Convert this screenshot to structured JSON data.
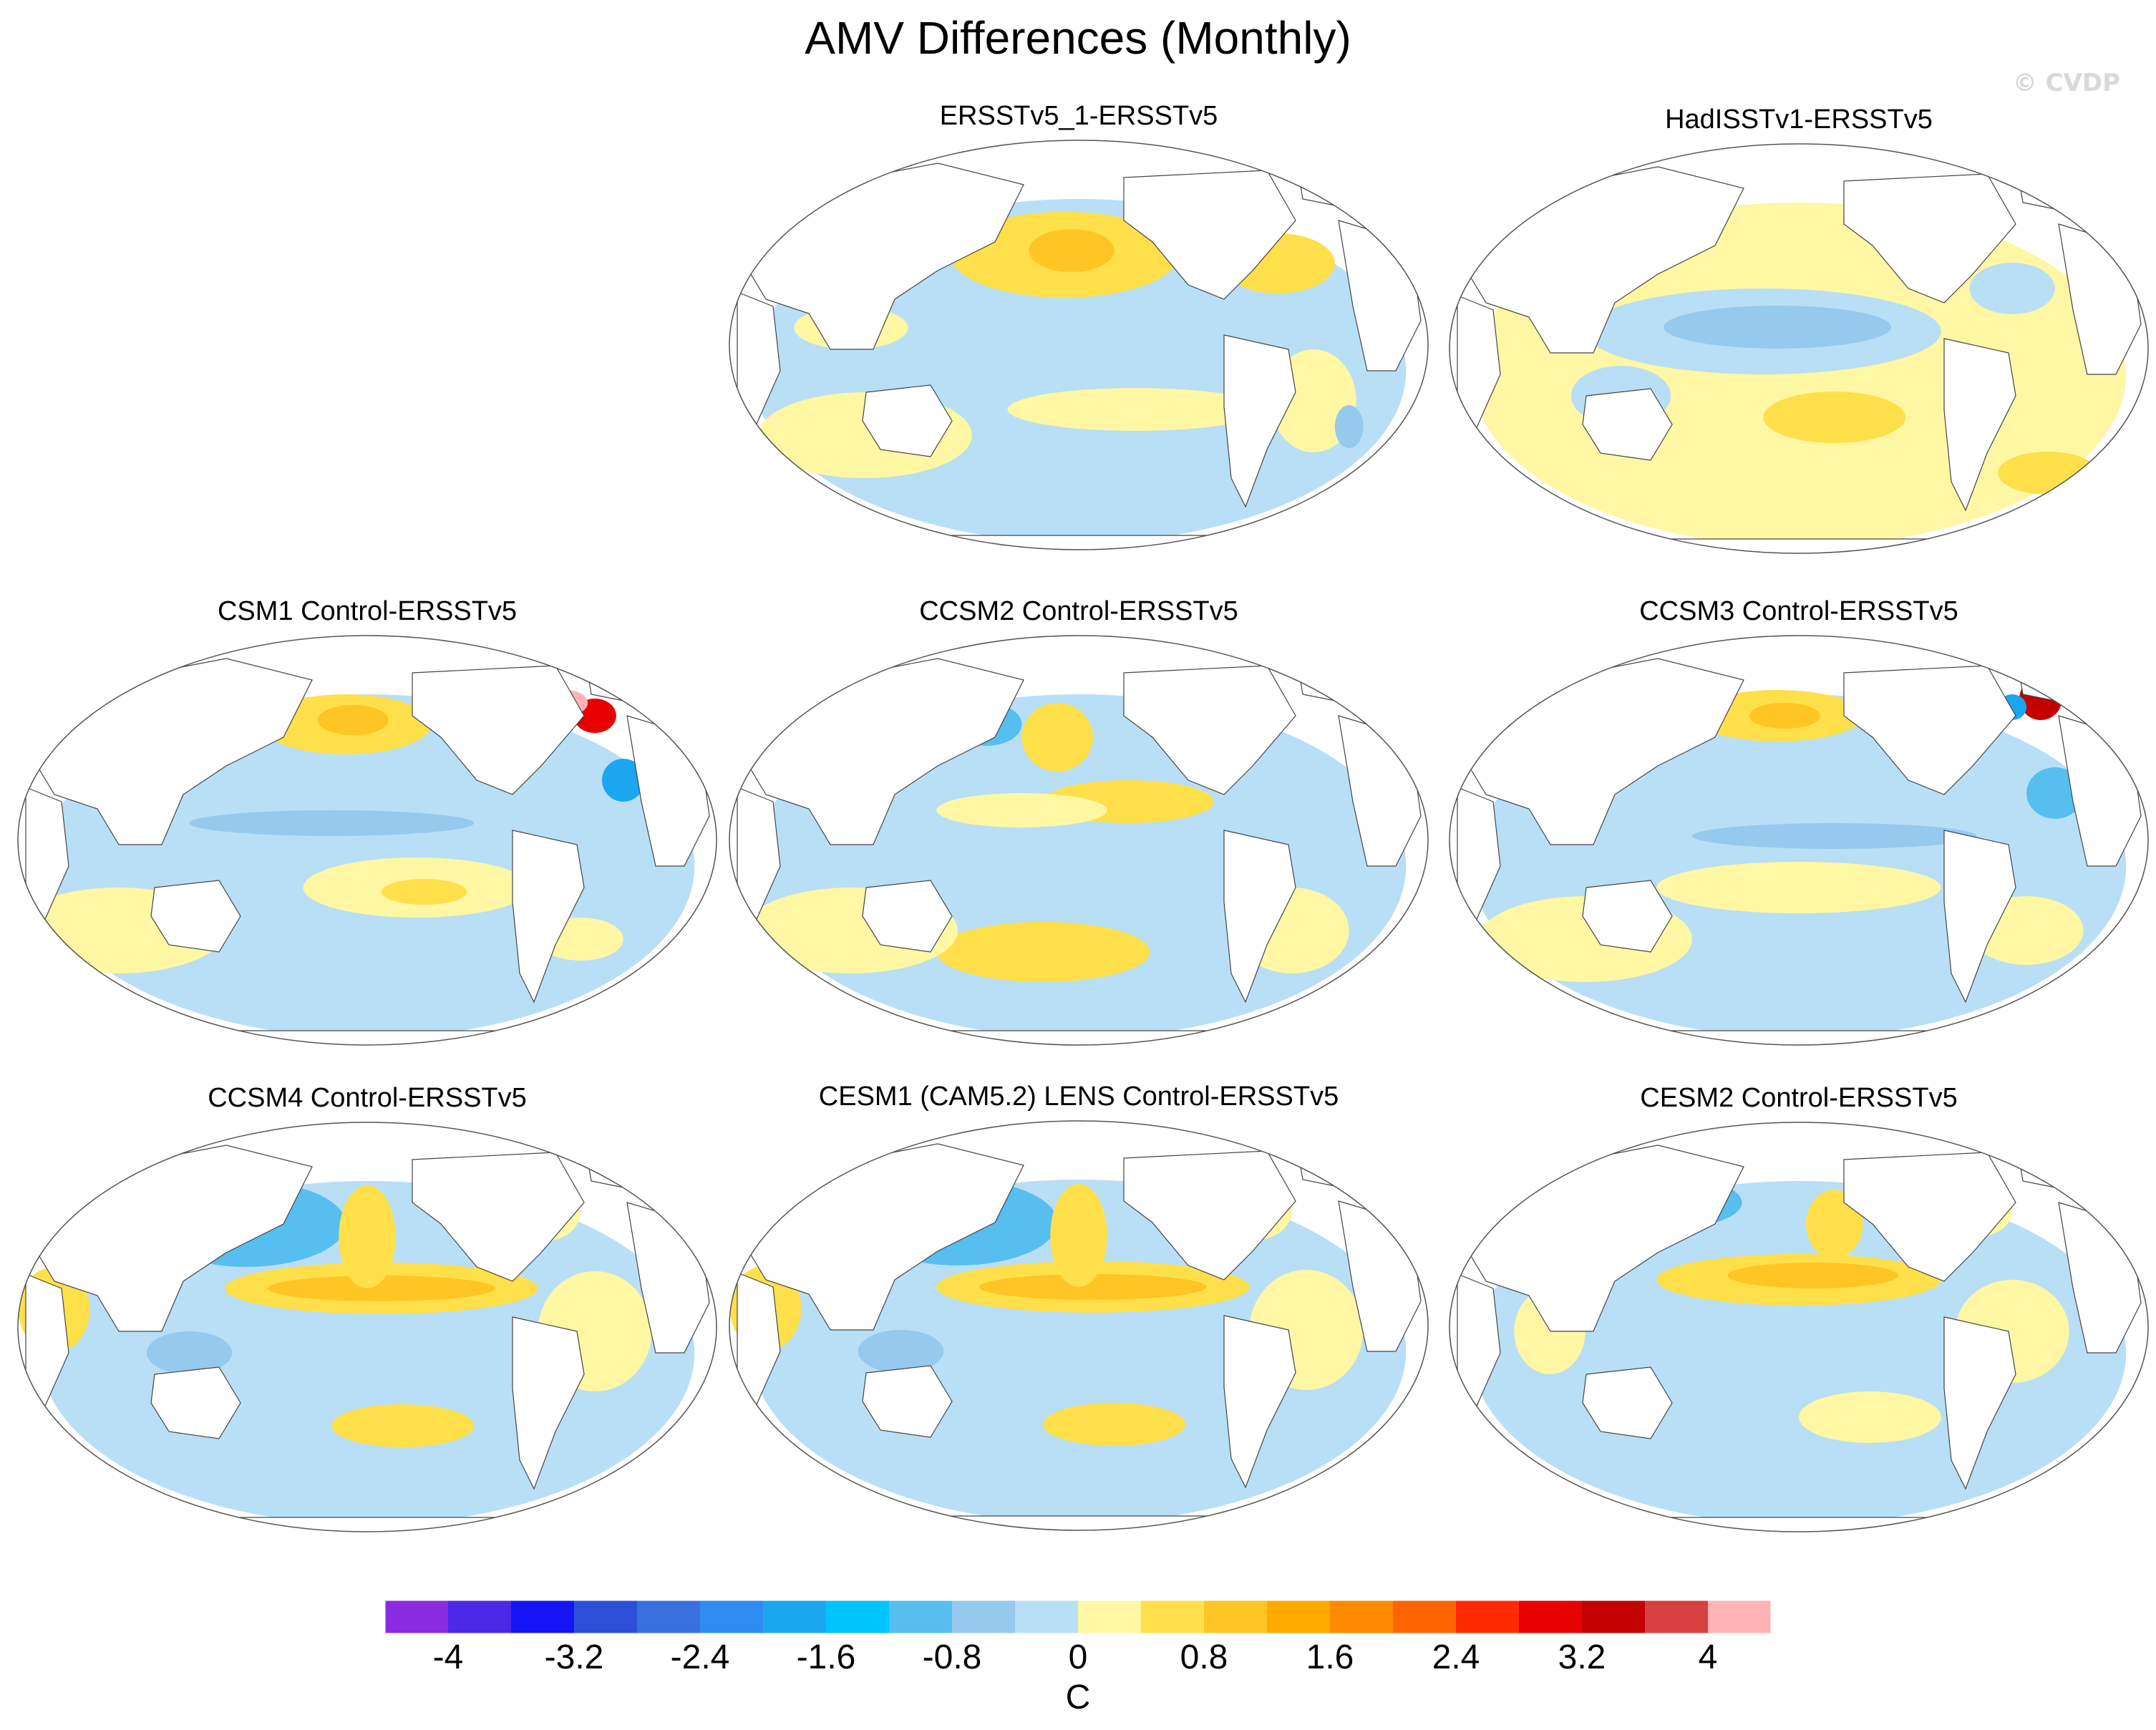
{
  "title": "AMV Differences (Monthly)",
  "watermark": "© CVDP",
  "panels": [
    {
      "title": "ERSSTv5_1-ERSSTv5",
      "pattern": "a"
    },
    {
      "title": "HadISSTv1-ERSSTv5",
      "pattern": "b"
    },
    {
      "title": "CSM1 Control-ERSSTv5",
      "pattern": "c"
    },
    {
      "title": "CCSM2 Control-ERSSTv5",
      "pattern": "d"
    },
    {
      "title": "CCSM3 Control-ERSSTv5",
      "pattern": "e"
    },
    {
      "title": "CCSM4 Control-ERSSTv5",
      "pattern": "f"
    },
    {
      "title": "CESM1 (CAM5.2) LENS Control-ERSSTv5",
      "pattern": "f"
    },
    {
      "title": "CESM2 Control-ERSSTv5",
      "pattern": "g"
    }
  ],
  "colorbar": {
    "colors": [
      "#8a2be2",
      "#4b28e6",
      "#1414f5",
      "#2d4fd8",
      "#3a6fe0",
      "#2e8cf0",
      "#1aa7f0",
      "#00c4ff",
      "#56bff0",
      "#96c9ee",
      "#b9dff6",
      "#fff7a3",
      "#ffe04a",
      "#ffc524",
      "#ffaa00",
      "#ff8a00",
      "#ff6400",
      "#ff2a00",
      "#e60000",
      "#c40000",
      "#d94040",
      "#ffb4b4"
    ],
    "tick_labels": [
      "-4",
      "-3.2",
      "-2.4",
      "-1.6",
      "-0.8",
      "0",
      "0.8",
      "1.6",
      "2.4",
      "3.2",
      "4"
    ],
    "units": "C"
  }
}
